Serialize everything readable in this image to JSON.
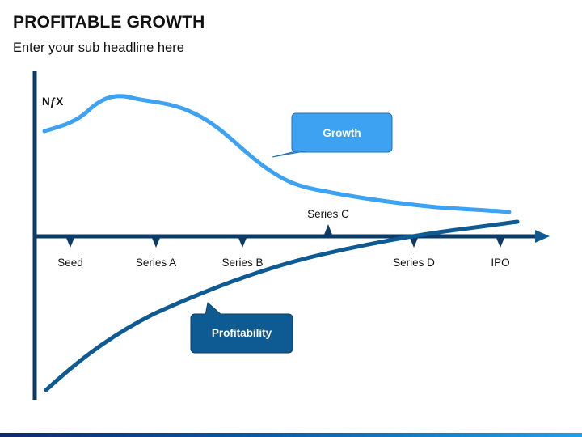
{
  "header": {
    "title": "PROFITABLE GROWTH",
    "subtitle": "Enter your sub headline here"
  },
  "diagram": {
    "y_axis_label": "NƒX",
    "stages": [
      {
        "label": "Seed",
        "position": "below"
      },
      {
        "label": "Series A",
        "position": "below"
      },
      {
        "label": "Series B",
        "position": "below"
      },
      {
        "label": "Series C",
        "position": "above"
      },
      {
        "label": "Series D",
        "position": "below"
      },
      {
        "label": "IPO",
        "position": "below"
      }
    ],
    "callouts": {
      "growth": "Growth",
      "profitability": "Profitability"
    },
    "colors": {
      "growth": "#3da2f2",
      "profitability": "#0e5a93",
      "axis": "#0e3a66",
      "axis_arrow": "#0e5a93"
    }
  }
}
